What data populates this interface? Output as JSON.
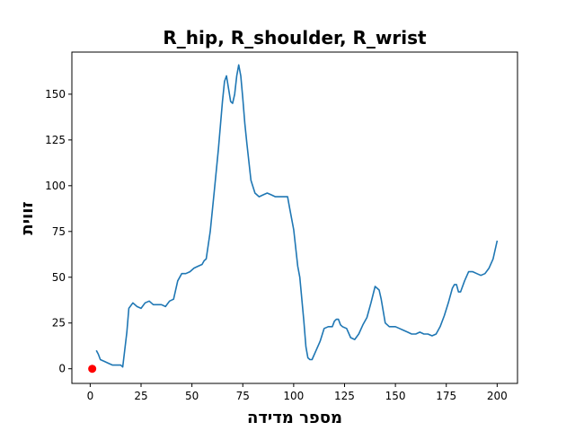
{
  "chart_data": {
    "type": "line",
    "title": "R_hip, R_shoulder, R_wrist",
    "xlabel": "מספר מדידה",
    "ylabel": "זווית",
    "xlim": [
      -9,
      210
    ],
    "ylim": [
      -8,
      173
    ],
    "xticks": [
      0,
      25,
      50,
      75,
      100,
      125,
      150,
      175,
      200
    ],
    "yticks": [
      0,
      25,
      50,
      75,
      100,
      125,
      150
    ],
    "grid": false,
    "colors": {
      "line": "#1f77b4",
      "marker": "#ff0000",
      "axes": "#000000"
    },
    "marker": {
      "x": 1,
      "y": 0
    },
    "series": [
      {
        "x": [
          3,
          4,
          5,
          7,
          9,
          11,
          13,
          15,
          16,
          18,
          19,
          21,
          23,
          25,
          27,
          29,
          31,
          33,
          35,
          37,
          39,
          41,
          43,
          45,
          47,
          49,
          51,
          53,
          55,
          56,
          57,
          59,
          61,
          63,
          65,
          66,
          67,
          68,
          69,
          70,
          71,
          72,
          73,
          74,
          75,
          76,
          77,
          79,
          81,
          83,
          85,
          87,
          89,
          91,
          93,
          95,
          97,
          98,
          100,
          102,
          103,
          105,
          106,
          107,
          108,
          109,
          111,
          113,
          115,
          117,
          119,
          120,
          121,
          122,
          123,
          124,
          126,
          128,
          130,
          132,
          134,
          136,
          138,
          140,
          142,
          143,
          145,
          147,
          148,
          150,
          152,
          154,
          156,
          158,
          160,
          162,
          164,
          166,
          168,
          170,
          172,
          174,
          176,
          178,
          179,
          180,
          181,
          182,
          184,
          186,
          188,
          190,
          192,
          194,
          196,
          198,
          200
        ],
        "y": [
          10,
          8,
          5,
          4,
          3,
          2,
          2,
          2,
          1,
          20,
          33,
          36,
          34,
          33,
          36,
          37,
          35,
          35,
          35,
          34,
          37,
          38,
          48,
          52,
          52,
          53,
          55,
          56,
          57,
          59,
          60,
          75,
          97,
          120,
          146,
          157,
          160,
          153,
          146,
          145,
          150,
          160,
          166,
          160,
          148,
          134,
          123,
          103,
          96,
          94,
          95,
          96,
          95,
          94,
          94,
          94,
          94,
          88,
          76,
          56,
          50,
          26,
          12,
          6,
          5,
          5,
          10,
          15,
          22,
          23,
          23,
          26,
          27,
          27,
          24,
          23,
          22,
          17,
          16,
          19,
          24,
          28,
          36,
          45,
          43,
          38,
          25,
          23,
          23,
          23,
          22,
          21,
          20,
          19,
          19,
          20,
          19,
          19,
          18,
          19,
          23,
          29,
          36,
          44,
          46,
          46,
          42,
          42,
          48,
          53,
          53,
          52,
          51,
          52,
          55,
          60,
          70
        ]
      }
    ]
  }
}
